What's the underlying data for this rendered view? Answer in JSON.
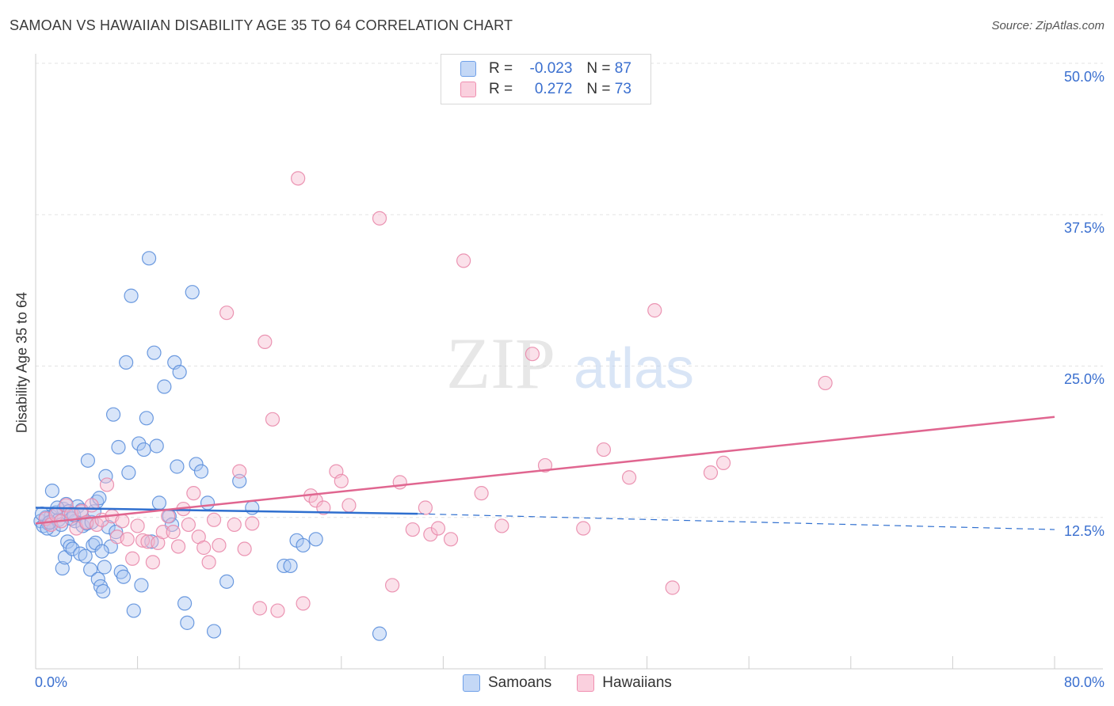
{
  "title": "SAMOAN VS HAWAIIAN DISABILITY AGE 35 TO 64 CORRELATION CHART",
  "source": "Source: ZipAtlas.com",
  "watermark": {
    "zip": "ZIP",
    "atlas": "atlas"
  },
  "legend": {
    "r_label": "R =",
    "n_label": "N =",
    "rows": [
      {
        "r": "-0.023",
        "n": "87",
        "color": "#6fa0e8"
      },
      {
        "r": "0.272",
        "n": "73",
        "color": "#f08fb0"
      }
    ]
  },
  "bottom_legend": [
    {
      "label": "Samoans",
      "color": "#6fa0e8"
    },
    {
      "label": "Hawaiians",
      "color": "#f08fb0"
    }
  ],
  "colors": {
    "samoan_fill": "#a9c6f2",
    "samoan_stroke": "#5c8fdc",
    "samoan_line": "#2f6fcf",
    "hawaiian_fill": "#f7bcd0",
    "hawaiian_stroke": "#e98aab",
    "hawaiian_line": "#e06690",
    "tick_label": "#3a6fcf"
  },
  "chart_data": {
    "type": "scatter",
    "title": "SAMOAN VS HAWAIIAN DISABILITY AGE 35 TO 64 CORRELATION CHART",
    "xlabel": "",
    "ylabel": "Disability Age 35 to 64",
    "xlim": [
      0,
      80
    ],
    "ylim": [
      0,
      50
    ],
    "x_tick_labels": [
      "0.0%",
      "80.0%"
    ],
    "y_ticks": [
      12.5,
      25.0,
      37.5,
      50.0
    ],
    "y_tick_labels": [
      "12.5%",
      "25.0%",
      "37.5%",
      "50.0%"
    ],
    "series": [
      {
        "name": "Samoans",
        "r": -0.023,
        "n": 87,
        "trend": {
          "x": [
            0,
            30
          ],
          "y": [
            13.3,
            12.8
          ],
          "dashed_to": [
            80,
            11.5
          ]
        },
        "points": [
          [
            0.4,
            12.2
          ],
          [
            0.6,
            11.8
          ],
          [
            0.8,
            12.5
          ],
          [
            1.0,
            12.0
          ],
          [
            1.2,
            12.6
          ],
          [
            1.4,
            11.5
          ],
          [
            1.6,
            12.9
          ],
          [
            1.8,
            12.3
          ],
          [
            2.0,
            11.9
          ],
          [
            2.2,
            13.2
          ],
          [
            2.4,
            13.6
          ],
          [
            2.6,
            13.0
          ],
          [
            0.5,
            12.8
          ],
          [
            0.9,
            11.6
          ],
          [
            1.3,
            14.7
          ],
          [
            1.7,
            13.3
          ],
          [
            2.1,
            8.3
          ],
          [
            2.3,
            9.2
          ],
          [
            2.5,
            10.5
          ],
          [
            2.7,
            10.1
          ],
          [
            2.9,
            9.9
          ],
          [
            3.1,
            12.2
          ],
          [
            3.3,
            13.4
          ],
          [
            3.5,
            9.5
          ],
          [
            3.7,
            11.8
          ],
          [
            3.9,
            9.3
          ],
          [
            4.1,
            17.2
          ],
          [
            4.3,
            8.2
          ],
          [
            4.5,
            10.2
          ],
          [
            4.7,
            10.4
          ],
          [
            4.9,
            7.4
          ],
          [
            5.1,
            6.8
          ],
          [
            5.3,
            6.4
          ],
          [
            5.5,
            15.9
          ],
          [
            5.7,
            11.7
          ],
          [
            5.9,
            10.1
          ],
          [
            6.1,
            21.0
          ],
          [
            6.3,
            11.3
          ],
          [
            6.5,
            18.3
          ],
          [
            6.7,
            8.0
          ],
          [
            6.9,
            7.6
          ],
          [
            7.1,
            25.3
          ],
          [
            7.3,
            16.2
          ],
          [
            7.5,
            30.8
          ],
          [
            7.7,
            4.8
          ],
          [
            8.1,
            18.6
          ],
          [
            8.3,
            6.9
          ],
          [
            8.5,
            18.1
          ],
          [
            8.7,
            20.7
          ],
          [
            8.9,
            33.9
          ],
          [
            9.1,
            10.5
          ],
          [
            9.3,
            26.1
          ],
          [
            9.5,
            18.4
          ],
          [
            9.7,
            13.7
          ],
          [
            10.1,
            23.3
          ],
          [
            10.5,
            12.6
          ],
          [
            10.7,
            11.9
          ],
          [
            10.9,
            25.3
          ],
          [
            11.1,
            16.7
          ],
          [
            11.3,
            24.5
          ],
          [
            11.7,
            5.4
          ],
          [
            11.9,
            3.8
          ],
          [
            12.3,
            31.1
          ],
          [
            12.6,
            16.9
          ],
          [
            13.0,
            16.3
          ],
          [
            13.5,
            13.7
          ],
          [
            14.0,
            3.1
          ],
          [
            15.0,
            7.2
          ],
          [
            16.0,
            15.5
          ],
          [
            17.0,
            13.3
          ],
          [
            19.5,
            8.5
          ],
          [
            20.0,
            8.5
          ],
          [
            20.5,
            10.6
          ],
          [
            21.0,
            10.2
          ],
          [
            22.0,
            10.7
          ],
          [
            27.0,
            2.9
          ],
          [
            1.1,
            12.1
          ],
          [
            2.8,
            12.4
          ],
          [
            3.0,
            12.7
          ],
          [
            3.6,
            13.1
          ],
          [
            4.0,
            12.0
          ],
          [
            4.4,
            12.1
          ],
          [
            4.6,
            13.0
          ],
          [
            4.8,
            13.8
          ],
          [
            5.0,
            14.1
          ],
          [
            5.2,
            9.7
          ],
          [
            5.4,
            8.4
          ]
        ]
      },
      {
        "name": "Hawaiians",
        "r": 0.272,
        "n": 73,
        "trend": {
          "x": [
            0,
            80
          ],
          "y": [
            12.0,
            20.8
          ]
        },
        "points": [
          [
            0.8,
            12.4
          ],
          [
            1.2,
            11.9
          ],
          [
            1.6,
            12.7
          ],
          [
            2.0,
            12.2
          ],
          [
            2.4,
            13.5
          ],
          [
            2.8,
            12.8
          ],
          [
            3.2,
            11.6
          ],
          [
            3.6,
            13.0
          ],
          [
            4.0,
            12.1
          ],
          [
            4.4,
            13.5
          ],
          [
            4.8,
            11.9
          ],
          [
            5.2,
            12.3
          ],
          [
            5.6,
            15.2
          ],
          [
            6.0,
            12.6
          ],
          [
            6.4,
            10.9
          ],
          [
            6.8,
            12.2
          ],
          [
            7.2,
            10.7
          ],
          [
            7.6,
            9.1
          ],
          [
            8.0,
            11.8
          ],
          [
            8.4,
            10.6
          ],
          [
            8.8,
            10.5
          ],
          [
            9.2,
            8.8
          ],
          [
            9.6,
            10.4
          ],
          [
            10.0,
            11.3
          ],
          [
            10.4,
            12.6
          ],
          [
            10.8,
            11.3
          ],
          [
            11.2,
            10.1
          ],
          [
            11.6,
            13.2
          ],
          [
            12.0,
            11.9
          ],
          [
            12.4,
            14.5
          ],
          [
            12.8,
            10.9
          ],
          [
            13.2,
            10.0
          ],
          [
            13.6,
            8.8
          ],
          [
            14.0,
            12.3
          ],
          [
            14.4,
            10.2
          ],
          [
            15.0,
            29.4
          ],
          [
            15.6,
            11.9
          ],
          [
            16.0,
            16.3
          ],
          [
            16.4,
            9.9
          ],
          [
            17.0,
            12.0
          ],
          [
            17.6,
            5.0
          ],
          [
            18.0,
            27.0
          ],
          [
            18.6,
            20.6
          ],
          [
            19.0,
            4.8
          ],
          [
            20.6,
            40.5
          ],
          [
            21.0,
            5.4
          ],
          [
            21.6,
            14.3
          ],
          [
            22.0,
            13.9
          ],
          [
            22.6,
            13.3
          ],
          [
            23.6,
            16.3
          ],
          [
            24.0,
            15.5
          ],
          [
            24.6,
            13.5
          ],
          [
            27.0,
            37.2
          ],
          [
            28.0,
            6.9
          ],
          [
            28.6,
            15.4
          ],
          [
            29.6,
            11.5
          ],
          [
            30.6,
            13.3
          ],
          [
            31.0,
            11.1
          ],
          [
            31.6,
            11.6
          ],
          [
            32.6,
            10.7
          ],
          [
            33.6,
            33.7
          ],
          [
            35.0,
            14.5
          ],
          [
            36.6,
            11.8
          ],
          [
            39.0,
            26.0
          ],
          [
            40.0,
            16.8
          ],
          [
            43.0,
            11.6
          ],
          [
            44.6,
            18.1
          ],
          [
            46.6,
            15.8
          ],
          [
            48.6,
            29.6
          ],
          [
            50.0,
            6.7
          ],
          [
            53.0,
            16.2
          ],
          [
            54.0,
            17.0
          ],
          [
            62.0,
            23.6
          ]
        ]
      }
    ]
  }
}
